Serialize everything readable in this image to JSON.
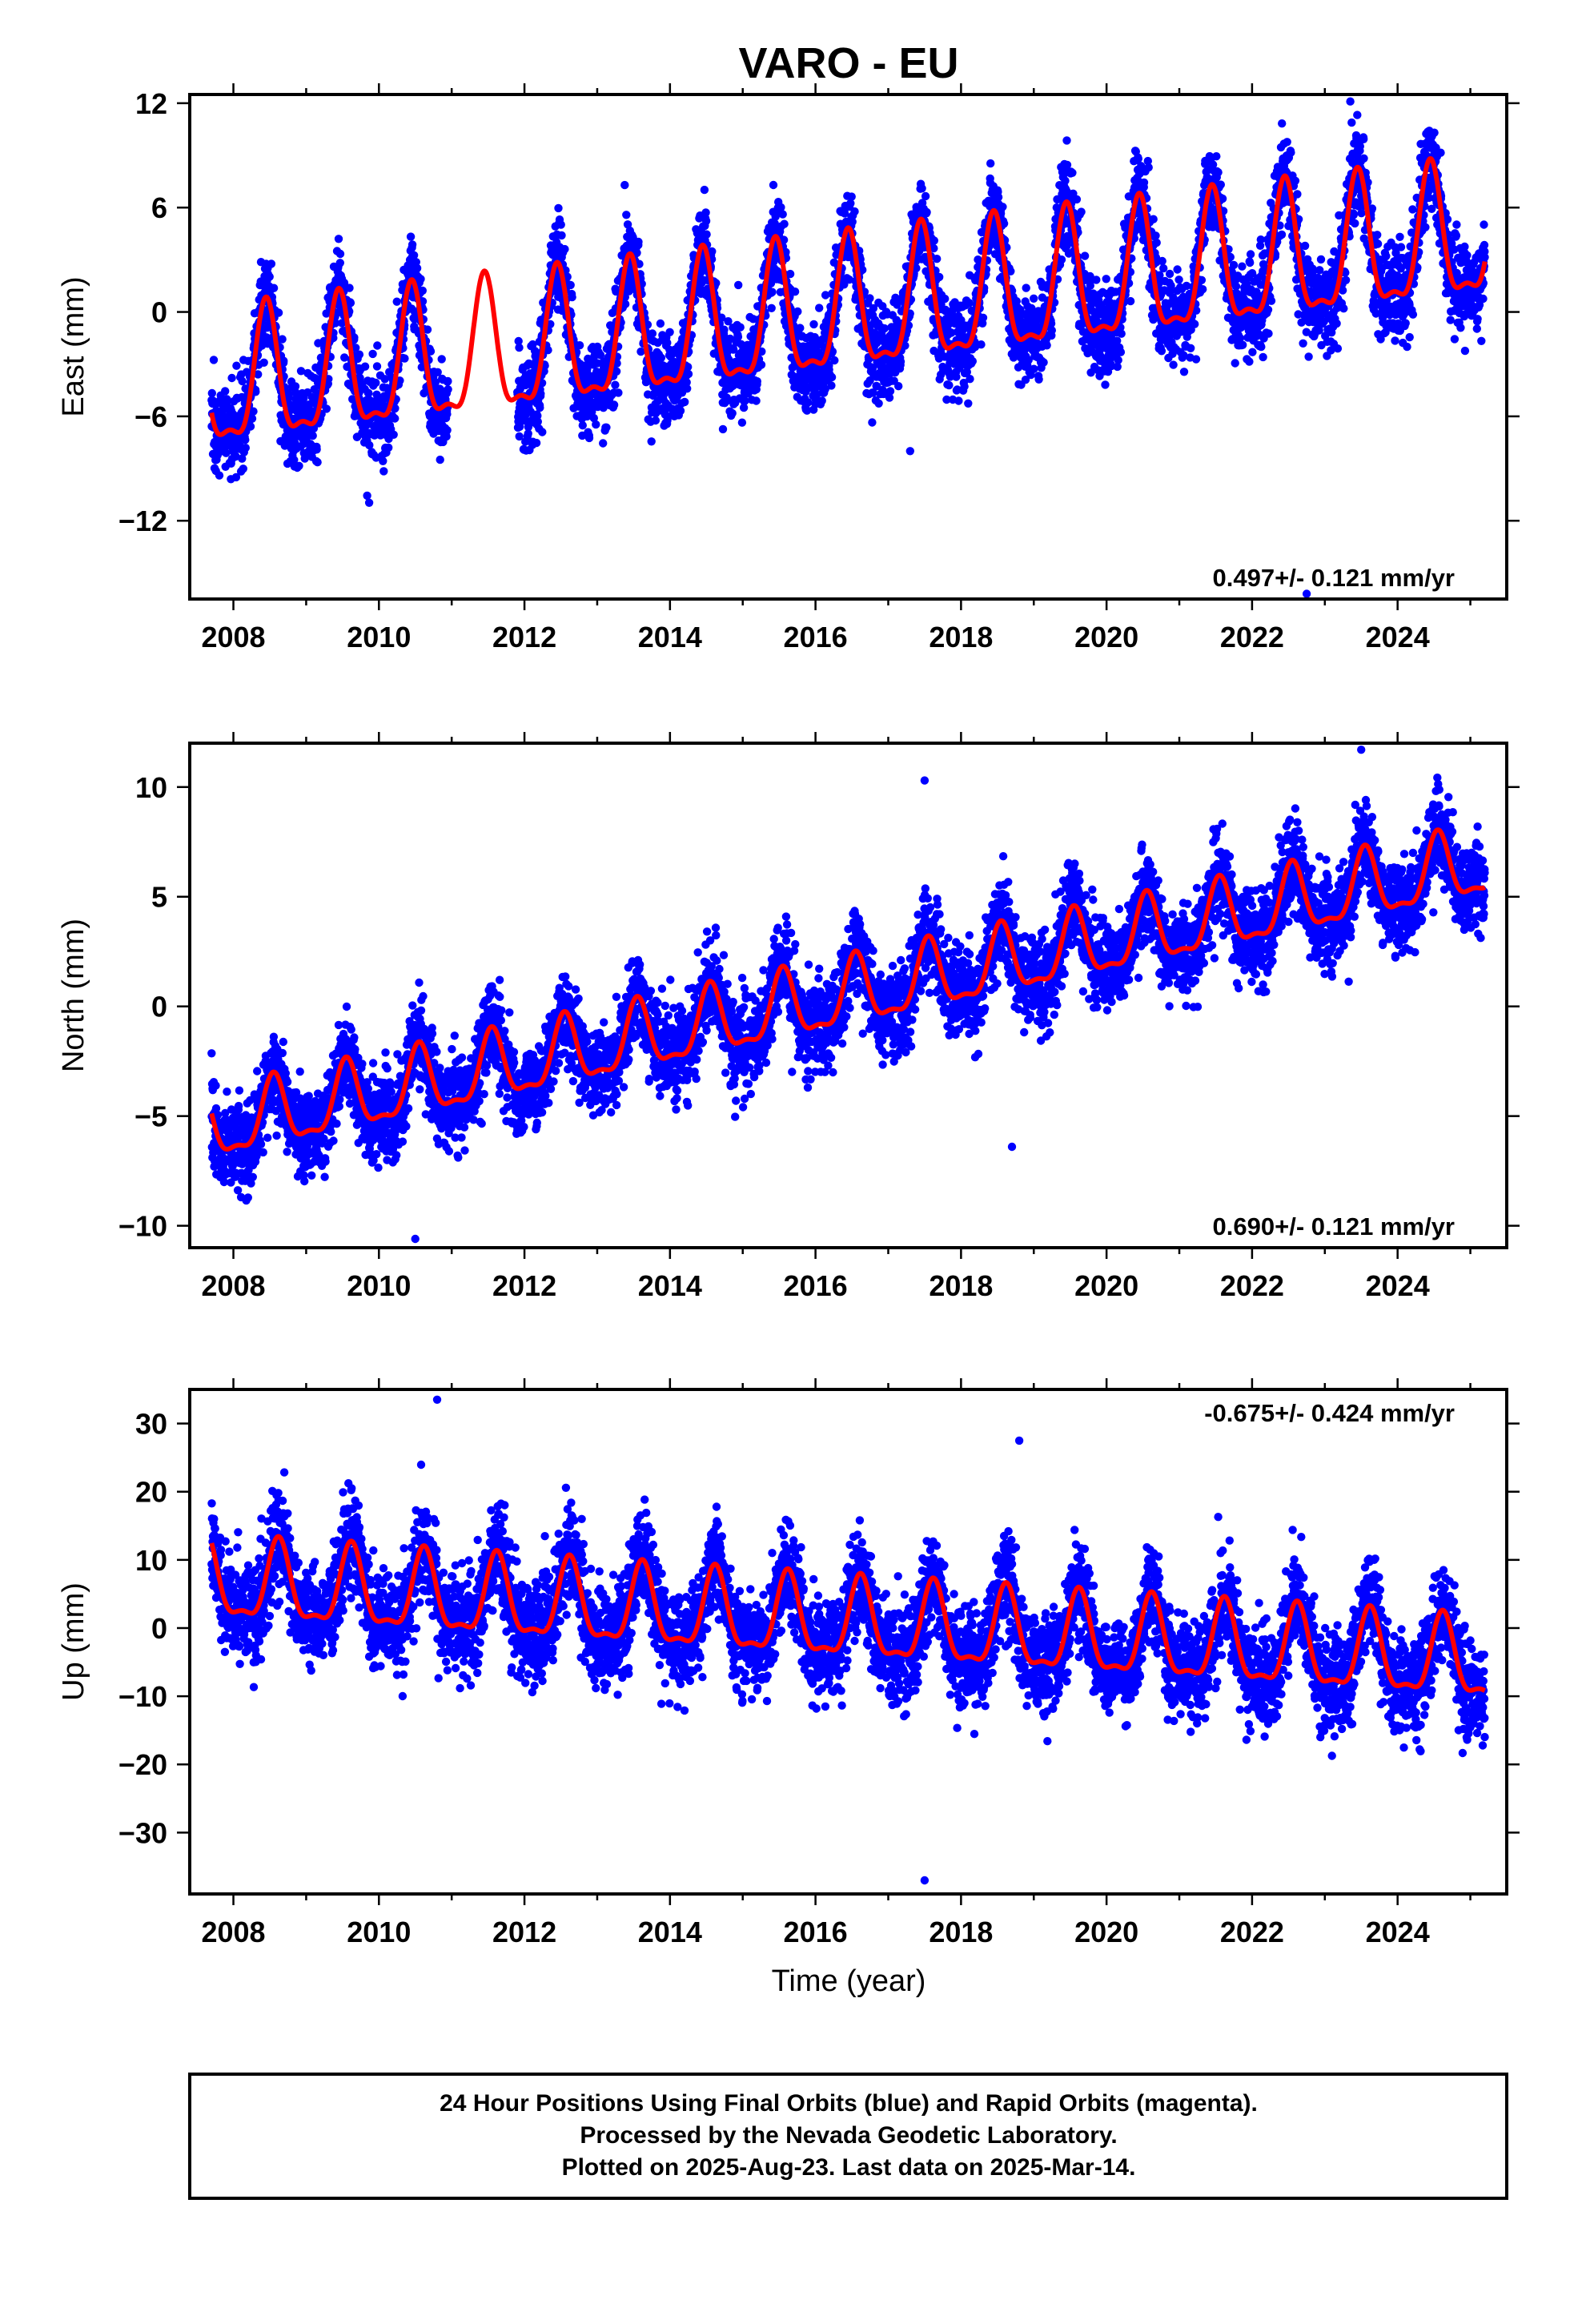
{
  "chart_data": {
    "title": "VARO - EU",
    "xlabel": "Time (year)",
    "xlim": [
      2007.4,
      2025.5
    ],
    "x_ticks": [
      2008,
      2010,
      2012,
      2014,
      2016,
      2018,
      2020,
      2022,
      2024
    ],
    "first_data": 2007.7,
    "last_data": 2025.2,
    "footer": [
      "24 Hour Positions Using Final Orbits (blue) and Rapid Orbits (magenta).",
      "Processed by the Nevada Geodetic Laboratory.",
      "Plotted on 2025-Aug-23. Last data on 2025-Mar-14."
    ],
    "colors": {
      "points": "#0000ff",
      "model": "#ff0000",
      "axes": "#000000"
    },
    "charts": [
      {
        "type": "scatter",
        "ylabel": "East (mm)",
        "ylim": [
          -16.5,
          12.5
        ],
        "y_ticks": [
          12,
          6,
          0,
          -6,
          -12
        ],
        "rate_label": "0.497+/- 0.121 mm/yr",
        "rate_position": "bottom-right",
        "model": {
          "start_value": -4.5,
          "slope": 0.497,
          "amplitude": 3.7,
          "peak_phase": 0.45
        },
        "scatter_sd": 1.3,
        "outliers": [
          [
            2023.35,
            12.1
          ],
          [
            2022.75,
            -16.2
          ],
          [
            2017.3,
            -8.0
          ]
        ]
      },
      {
        "type": "scatter",
        "ylabel": "North (mm)",
        "ylim": [
          -11,
          12
        ],
        "y_ticks": [
          10,
          5,
          0,
          -5,
          -10
        ],
        "rate_label": "0.690+/- 0.121 mm/yr",
        "rate_position": "bottom-right",
        "model": {
          "start_value": -5.6,
          "slope": 0.69,
          "amplitude": 1.5,
          "peak_phase": 0.55
        },
        "scatter_sd": 1.0,
        "outliers": [
          [
            2010.5,
            -10.6
          ],
          [
            2023.5,
            11.7
          ],
          [
            2017.5,
            10.3
          ],
          [
            2018.7,
            -6.4
          ]
        ]
      },
      {
        "type": "scatter",
        "ylabel": "Up (mm)",
        "ylim": [
          -39,
          35
        ],
        "y_ticks": [
          30,
          20,
          10,
          0,
          -10,
          -20,
          -30
        ],
        "rate_label": "-0.675+/- 0.424 mm/yr",
        "rate_position": "top-right",
        "model": {
          "start_value": 6.5,
          "slope": -0.675,
          "amplitude": 5.6,
          "peak_phase": 0.62
        },
        "scatter_sd": 3.6,
        "outliers": [
          [
            2010.8,
            33.5
          ],
          [
            2017.5,
            -37.0
          ],
          [
            2018.8,
            27.5
          ]
        ]
      }
    ]
  }
}
